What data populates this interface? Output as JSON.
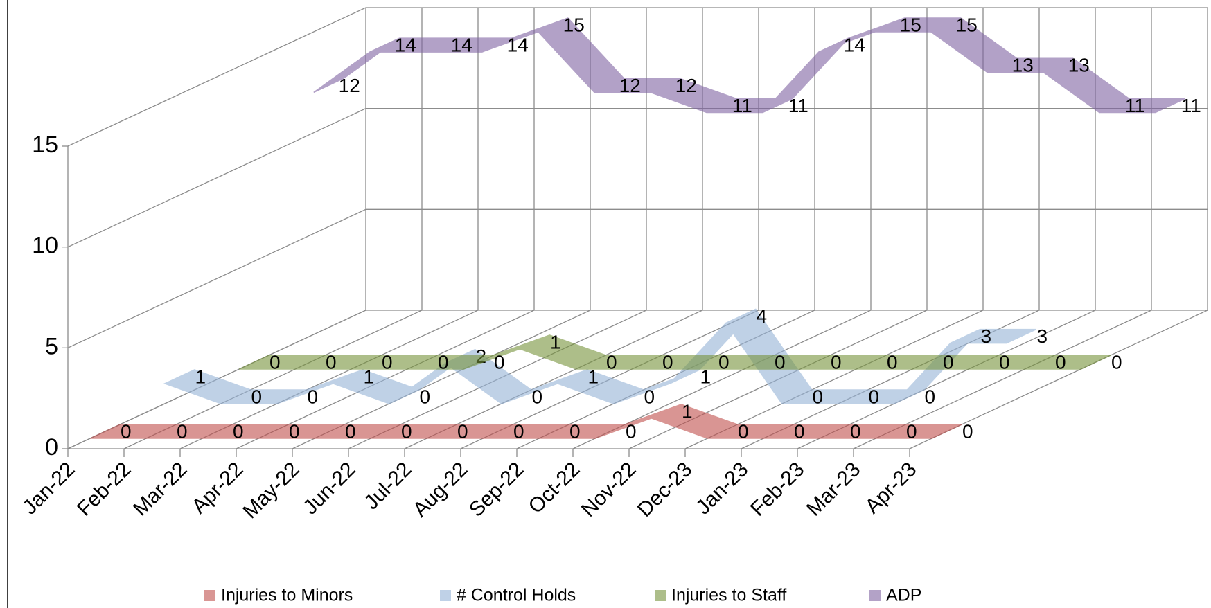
{
  "chart_data": {
    "type": "line3d",
    "categories": [
      "Jan-22",
      "Feb-22",
      "Mar-22",
      "Apr-22",
      "May-22",
      "Jun-22",
      "Jul-22",
      "Aug-22",
      "Sep-22",
      "Oct-22",
      "Nov-22",
      "Dec-23",
      "Jan-23",
      "Feb-23",
      "Mar-23",
      "Apr-23"
    ],
    "series": [
      {
        "name": "Injuries to Minors",
        "color": "#c0504d",
        "values": [
          0,
          0,
          0,
          0,
          0,
          0,
          0,
          0,
          0,
          0,
          1,
          0,
          0,
          0,
          0,
          0
        ]
      },
      {
        "name": "# Control Holds",
        "color": "#95b3d7",
        "values": [
          1,
          0,
          0,
          1,
          0,
          2,
          0,
          1,
          0,
          1,
          4,
          0,
          0,
          0,
          3,
          3
        ]
      },
      {
        "name": "Injuries to Staff",
        "color": "#77933c",
        "values": [
          0,
          0,
          0,
          0,
          0,
          1,
          0,
          0,
          0,
          0,
          0,
          0,
          0,
          0,
          0,
          0
        ]
      },
      {
        "name": "ADP",
        "color": "#8064a2",
        "values": [
          12,
          14,
          14,
          14,
          15,
          12,
          12,
          11,
          11,
          14,
          15,
          15,
          13,
          13,
          11,
          11
        ]
      }
    ],
    "ylim": [
      0,
      15
    ],
    "yticks": [
      0,
      5,
      10,
      15
    ],
    "grid": true,
    "legend": "bottom"
  }
}
